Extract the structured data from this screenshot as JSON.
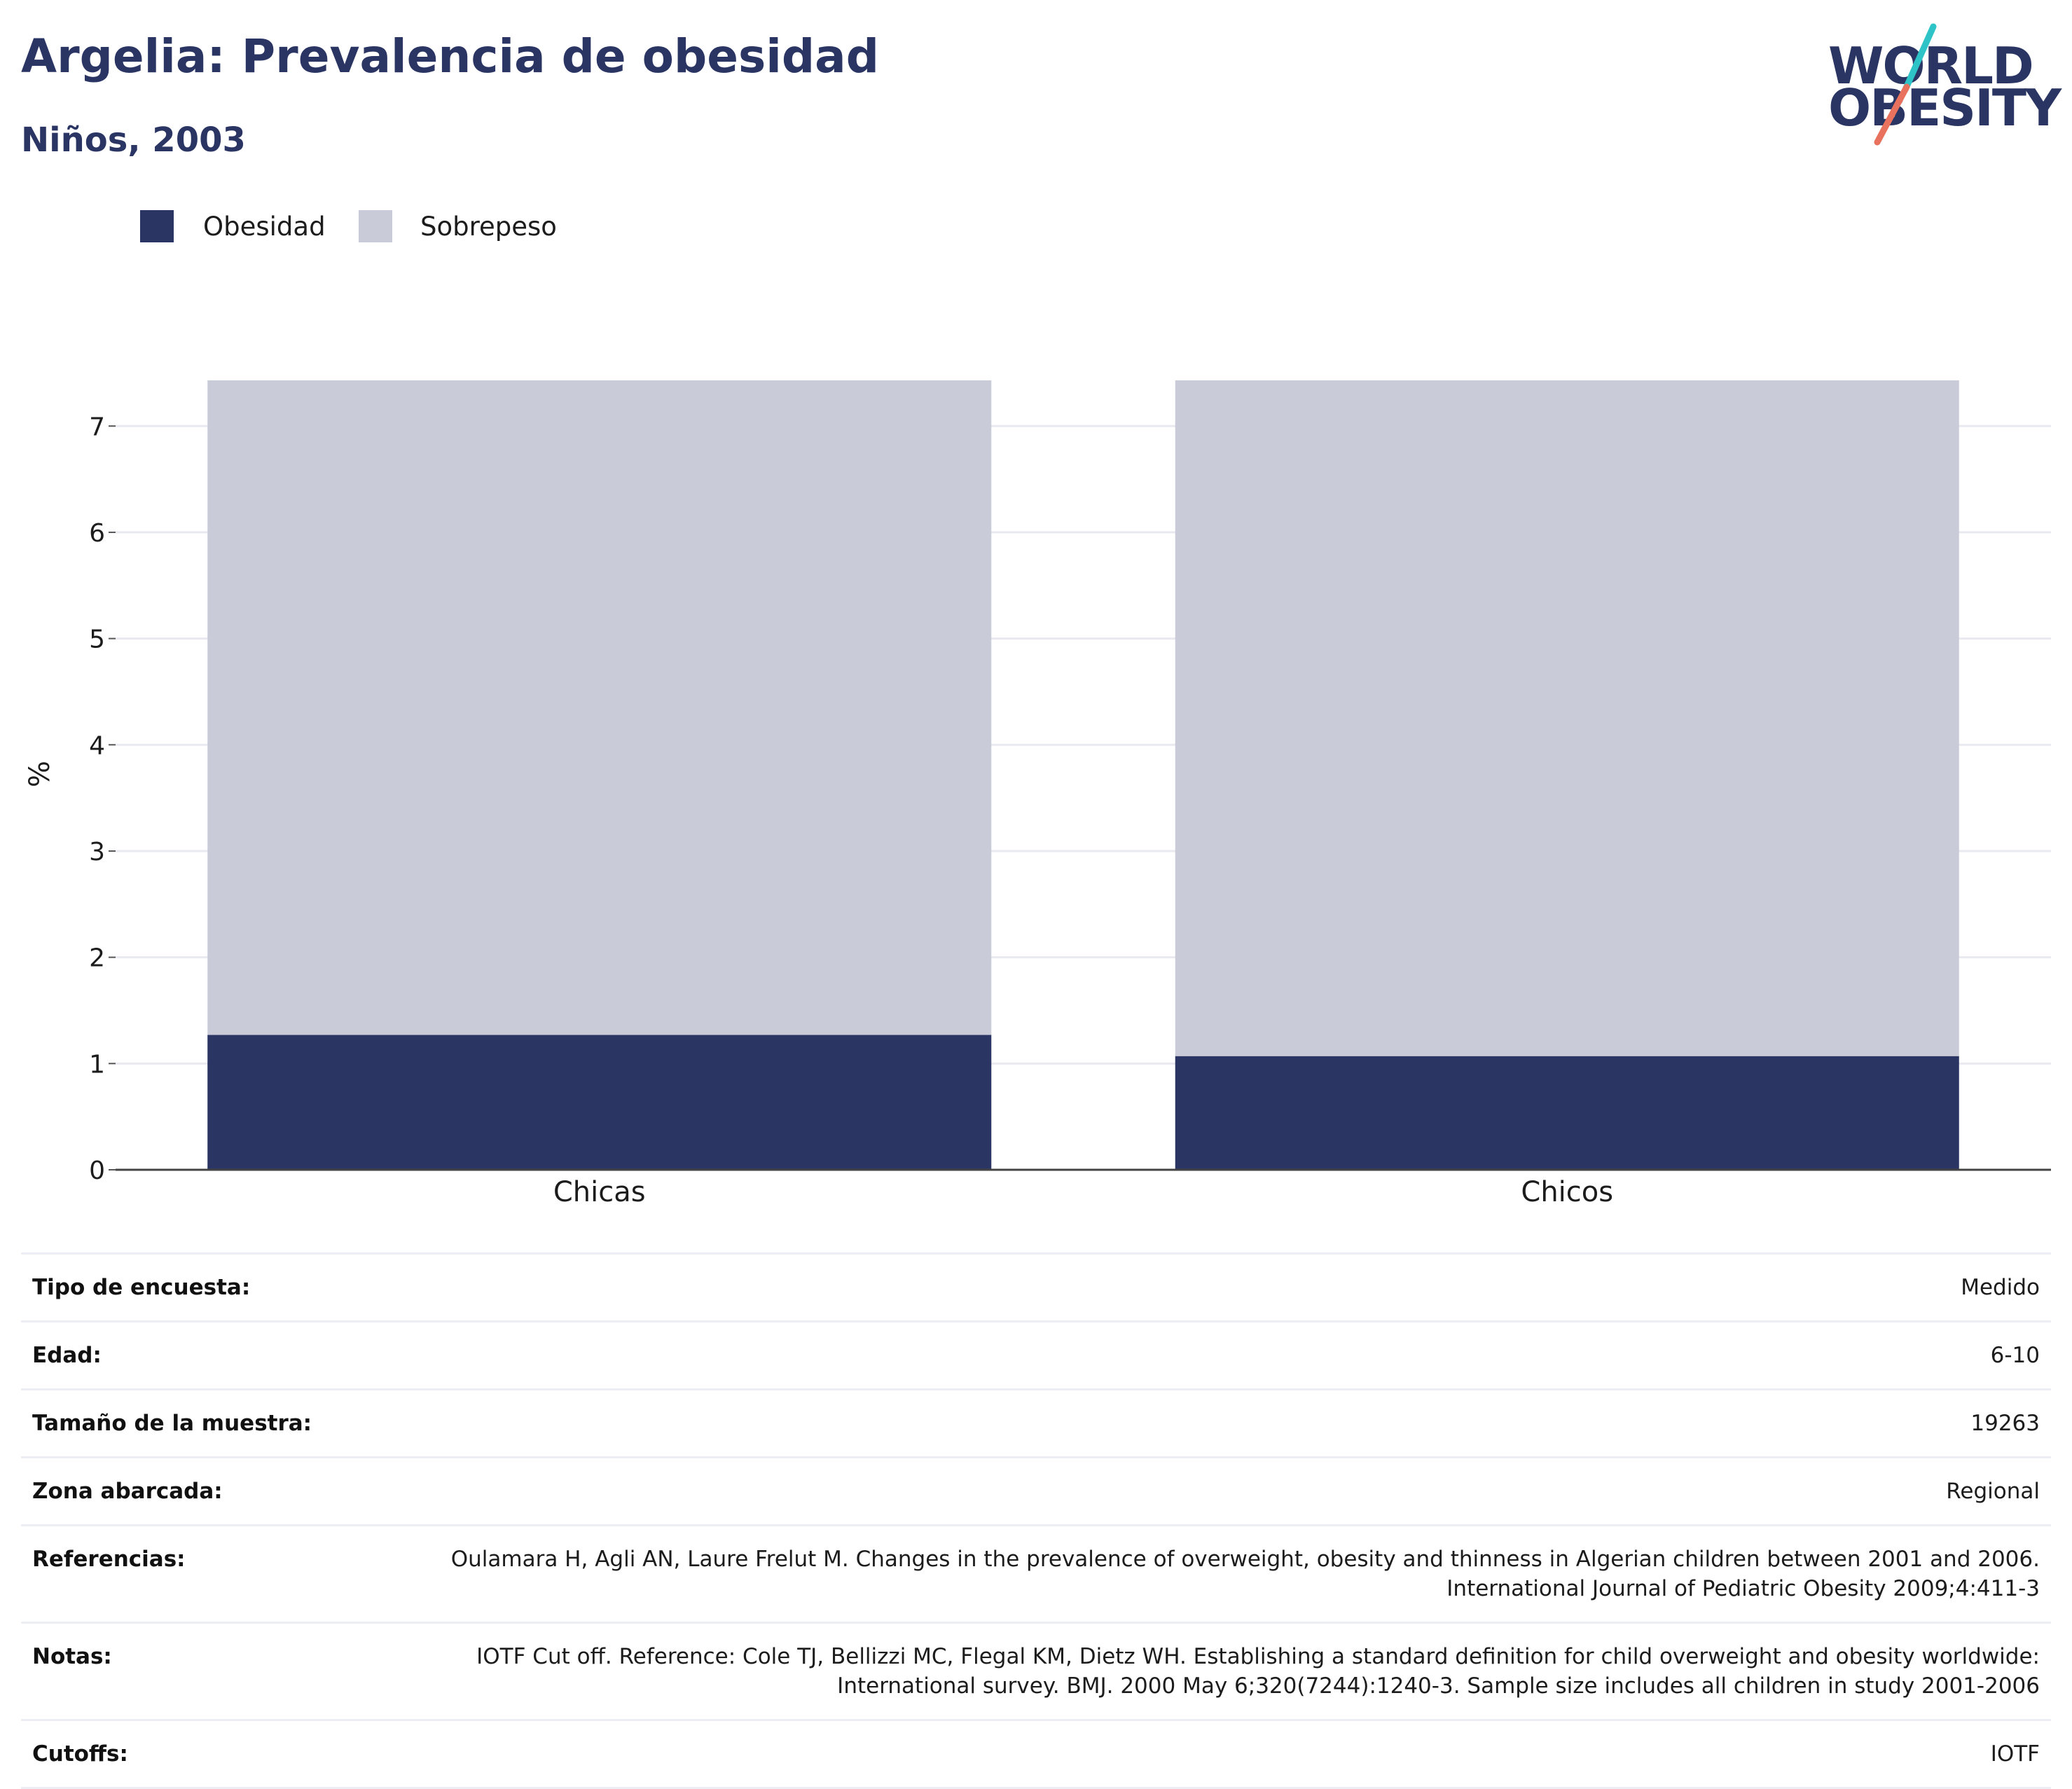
{
  "header": {
    "title": "Argelia: Prevalencia de obesidad",
    "subtitle": "Niños, 2003"
  },
  "logo": {
    "line1": "WORLD",
    "line2": "OBESITY",
    "accent_colors": [
      "#2ec4c7",
      "#e8725d"
    ]
  },
  "legend": [
    {
      "label": "Obesidad",
      "color": "#2a3563"
    },
    {
      "label": "Sobrepeso",
      "color": "#c9ccd8"
    }
  ],
  "chart_data": {
    "type": "bar",
    "stacked": true,
    "categories": [
      "Chicas",
      "Chicos"
    ],
    "series": [
      {
        "name": "Obesidad",
        "values": [
          1.27,
          1.07
        ],
        "color": "#2a3563"
      },
      {
        "name": "Sobrepeso",
        "values": [
          6.16,
          6.36
        ],
        "color": "#c9ccd8"
      }
    ],
    "title": "Argelia: Prevalencia de obesidad",
    "subtitle": "Niños, 2003",
    "xlabel": "",
    "ylabel": "%",
    "ylim": [
      0,
      7.45
    ],
    "yticks": [
      "0",
      "1",
      "2",
      "3",
      "4",
      "5",
      "6",
      "7"
    ],
    "grid": true,
    "legend_position": "top-left"
  },
  "info": {
    "rows": [
      {
        "key": "Tipo de encuesta:",
        "value": "Medido"
      },
      {
        "key": "Edad:",
        "value": "6-10"
      },
      {
        "key": "Tamaño de la muestra:",
        "value": "19263"
      },
      {
        "key": "Zona abarcada:",
        "value": "Regional"
      },
      {
        "key": "Referencias:",
        "value": "Oulamara H, Agli AN, Laure Frelut M. Changes in the prevalence of overweight, obesity and thinness in Algerian children between 2001 and 2006. International Journal of Pediatric Obesity 2009;4:411-3"
      },
      {
        "key": "Notas:",
        "value": "IOTF Cut off. Reference: Cole TJ, Bellizzi MC, Flegal KM, Dietz WH. Establishing a standard definition for child overweight and obesity worldwide: International survey. BMJ. 2000 May 6;320(7244):1240-3. Sample size includes all children in study 2001-2006"
      },
      {
        "key": "Cutoffs:",
        "value": "IOTF"
      }
    ]
  }
}
